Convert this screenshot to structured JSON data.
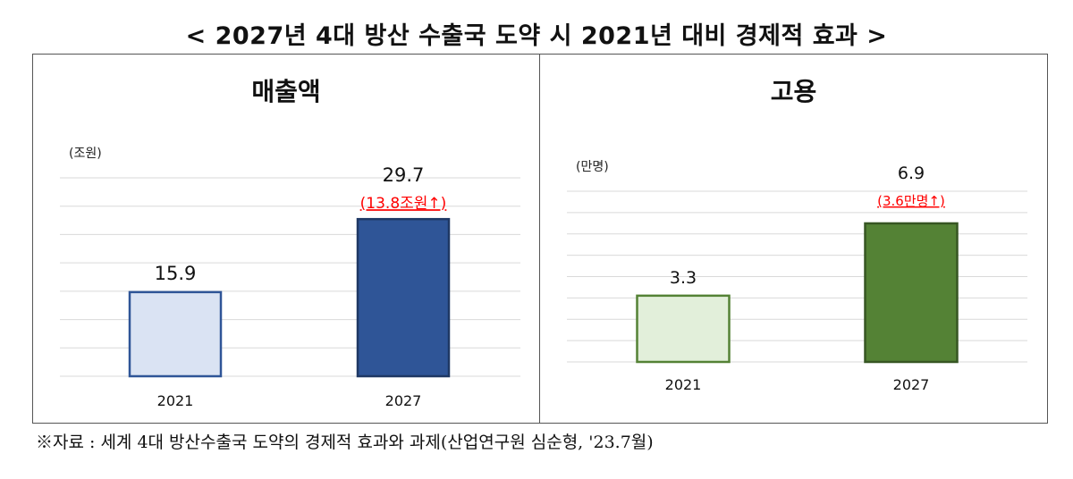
{
  "title": "< 2027년 4대 방산 수출국 도약 시 2021년 대비 경제적 효과 >",
  "source": "※자료 : 세계 4대 방산수출국 도약의 경제적 효과와 과제(산업연구원 심순형, '23.7월)",
  "colors": {
    "sales_2021_fill": "#dae3f3",
    "sales_2021_stroke": "#2f5597",
    "sales_2027_fill": "#2f5597",
    "sales_2027_stroke": "#1f3864",
    "emp_2021_fill": "#e2efda",
    "emp_2021_stroke": "#548235",
    "emp_2027_fill": "#548235",
    "emp_2027_stroke": "#375623",
    "increase_text": "#ff0000",
    "grid": "#d9d9d9"
  },
  "chart_data": [
    {
      "type": "bar",
      "title": "매출액",
      "unit": "(조원)",
      "categories": [
        "2021",
        "2027"
      ],
      "values": [
        15.9,
        29.7
      ],
      "value_labels": [
        "15.9",
        "29.7"
      ],
      "annotation": "(13.8조원↑)",
      "ylim": [
        0,
        37.5
      ],
      "grid": true
    },
    {
      "type": "bar",
      "title": "고용",
      "unit": "(만명)",
      "categories": [
        "2021",
        "2027"
      ],
      "values": [
        3.3,
        6.9
      ],
      "value_labels": [
        "3.3",
        "6.9"
      ],
      "annotation": "(3.6만명↑)",
      "ylim": [
        0,
        8.5
      ],
      "grid": true
    }
  ]
}
